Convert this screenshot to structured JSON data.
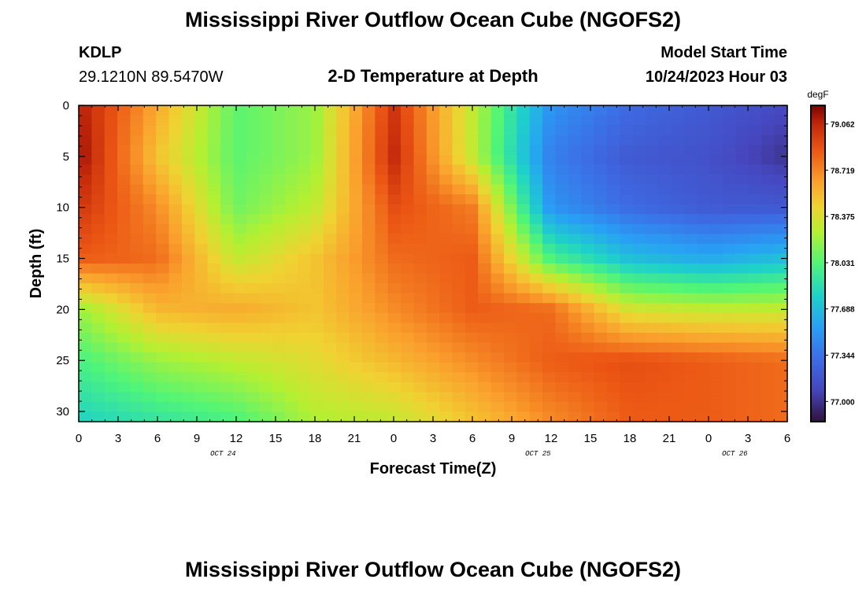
{
  "header": {
    "title": "Mississippi River Outflow Ocean Cube (NGOFS2)",
    "station": "KDLP",
    "coords": "29.1210N  89.5470W",
    "subtitle": "2-D Temperature at Depth",
    "model_label": "Model Start Time",
    "model_time": "10/24/2023 Hour 03"
  },
  "footer": {
    "title": "Mississippi River Outflow Ocean Cube (NGOFS2)"
  },
  "chart_data": {
    "type": "heatmap",
    "xlabel": "Forecast Time(Z)",
    "ylabel": "Depth (ft)",
    "x_ticks": [
      "0",
      "3",
      "6",
      "9",
      "12",
      "15",
      "18",
      "21",
      "0",
      "3",
      "6",
      "9",
      "12",
      "15",
      "18",
      "21",
      "0",
      "3",
      "6"
    ],
    "x_range_hours": [
      0,
      54
    ],
    "date_labels": [
      {
        "text": "OCT 24",
        "hour": 11
      },
      {
        "text": "OCT 25",
        "hour": 35
      },
      {
        "text": "OCT 26",
        "hour": 50
      }
    ],
    "y_ticks": [
      "0",
      "5",
      "10",
      "15",
      "20",
      "25",
      "30"
    ],
    "y_range_ft": [
      0,
      31
    ],
    "colorbar": {
      "unit": "degF",
      "ticks": [
        "79.062",
        "78.719",
        "78.375",
        "78.031",
        "77.688",
        "77.344",
        "77.000"
      ],
      "min": 76.85,
      "max": 79.2
    },
    "hours": [
      0,
      6,
      12,
      18,
      24,
      30,
      36,
      42,
      48,
      54
    ],
    "depths_ft": [
      0,
      5,
      10,
      15,
      20,
      25,
      31
    ],
    "values_degF": [
      [
        79.1,
        78.6,
        78.05,
        78.2,
        79.0,
        78.3,
        77.5,
        77.3,
        77.2,
        77.1
      ],
      [
        79.15,
        78.5,
        78.05,
        78.2,
        79.05,
        78.3,
        77.4,
        77.2,
        77.15,
        77.0
      ],
      [
        79.0,
        78.7,
        78.1,
        78.3,
        78.9,
        78.75,
        77.5,
        77.3,
        77.2,
        77.2
      ],
      [
        78.85,
        78.8,
        78.3,
        78.5,
        78.8,
        78.85,
        78.0,
        77.7,
        77.6,
        77.7
      ],
      [
        78.2,
        78.55,
        78.6,
        78.5,
        78.7,
        78.85,
        78.8,
        78.35,
        78.3,
        78.3
      ],
      [
        78.0,
        78.2,
        78.3,
        78.4,
        78.55,
        78.7,
        78.85,
        78.9,
        78.85,
        78.8
      ],
      [
        77.8,
        77.9,
        78.0,
        78.25,
        78.3,
        78.5,
        78.7,
        78.85,
        78.85,
        78.8
      ]
    ]
  }
}
